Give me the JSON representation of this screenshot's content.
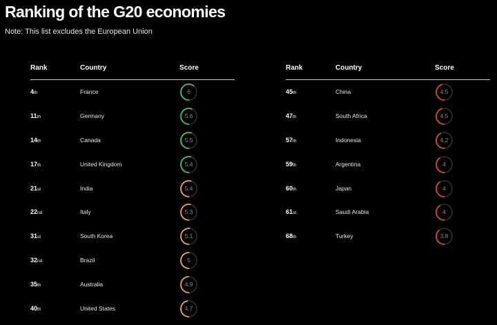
{
  "title": "Ranking of the G20 economies",
  "note": "Note: This list excludes the European Union",
  "colors": {
    "green": "#3ec46d",
    "amber": "#f0a548",
    "red": "#e0452f",
    "track": "#2a2a2a"
  },
  "tables": [
    {
      "headers": {
        "rank": "Rank",
        "country": "Country",
        "score": "Score"
      }
    },
    {
      "headers": {
        "rank": "Rank",
        "country": "Country",
        "score": "Score"
      }
    }
  ],
  "chart_data": {
    "type": "table",
    "title": "Ranking of the G20 economies",
    "score_max": 10,
    "columns": [
      "Rank",
      "Country",
      "Score"
    ],
    "rows": [
      {
        "rank": "4",
        "suffix": "th",
        "country": "France",
        "score": "6",
        "value": 6,
        "color": "green",
        "column": 0
      },
      {
        "rank": "11",
        "suffix": "th",
        "country": "Germany",
        "score": "5.6",
        "value": 5.6,
        "color": "green",
        "column": 0
      },
      {
        "rank": "14",
        "suffix": "th",
        "country": "Canada",
        "score": "5.5",
        "value": 5.5,
        "color": "green",
        "column": 0
      },
      {
        "rank": "17",
        "suffix": "th",
        "country": "United Kingdom",
        "score": "5.4",
        "value": 5.4,
        "color": "green",
        "column": 0
      },
      {
        "rank": "21",
        "suffix": "st",
        "country": "India",
        "score": "5.4",
        "value": 5.4,
        "color": "amber",
        "column": 0
      },
      {
        "rank": "22",
        "suffix": "nd",
        "country": "Italy",
        "score": "5.3",
        "value": 5.3,
        "color": "amber",
        "column": 0
      },
      {
        "rank": "31",
        "suffix": "st",
        "country": "South Korea",
        "score": "5.1",
        "value": 5.1,
        "color": "amber",
        "column": 0
      },
      {
        "rank": "32",
        "suffix": "nd",
        "country": "Brazil",
        "score": "5",
        "value": 5,
        "color": "amber",
        "column": 0
      },
      {
        "rank": "35",
        "suffix": "th",
        "country": "Australia",
        "score": "4.9",
        "value": 4.9,
        "color": "amber",
        "column": 0
      },
      {
        "rank": "40",
        "suffix": "th",
        "country": "United States",
        "score": "4.7",
        "value": 4.7,
        "color": "amber",
        "column": 0
      },
      {
        "rank": "45",
        "suffix": "th",
        "country": "China",
        "score": "4.5",
        "value": 4.5,
        "color": "red",
        "column": 1
      },
      {
        "rank": "47",
        "suffix": "th",
        "country": "South Africa",
        "score": "4.5",
        "value": 4.5,
        "color": "red",
        "column": 1
      },
      {
        "rank": "57",
        "suffix": "th",
        "country": "Indonesia",
        "score": "4.2",
        "value": 4.2,
        "color": "red",
        "column": 1
      },
      {
        "rank": "59",
        "suffix": "th",
        "country": "Argentina",
        "score": "4",
        "value": 4,
        "color": "red",
        "column": 1
      },
      {
        "rank": "60",
        "suffix": "th",
        "country": "Japan",
        "score": "4",
        "value": 4,
        "color": "red",
        "column": 1
      },
      {
        "rank": "61",
        "suffix": "st",
        "country": "Saudi Arabia",
        "score": "4",
        "value": 4,
        "color": "red",
        "column": 1
      },
      {
        "rank": "68",
        "suffix": "th",
        "country": "Turkey",
        "score": "3.8",
        "value": 3.8,
        "color": "red",
        "column": 1
      }
    ]
  }
}
